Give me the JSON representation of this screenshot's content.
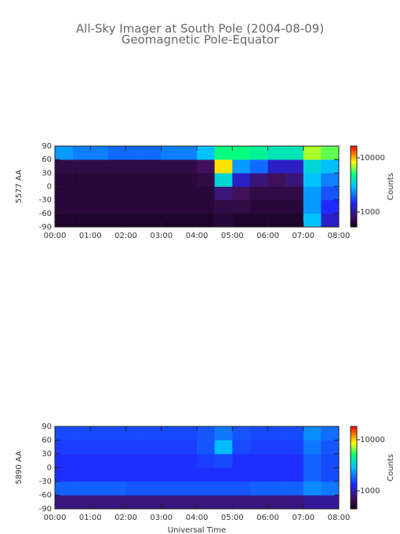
{
  "chart_data": [
    {
      "type": "heatmap",
      "title": "All-Sky Imager at South Pole (2004-08-09)",
      "subtitle": "Geomagnetic Pole-Equator",
      "y_label": "5577 AA",
      "colorbar_label": "Counts",
      "x_bins": [
        0,
        0.5,
        1,
        1.5,
        2,
        2.5,
        3,
        3.5,
        4,
        4.5,
        5,
        5.5,
        6,
        6.5,
        7,
        7.5,
        8
      ],
      "y_bins": [
        -90,
        -60,
        -30,
        0,
        30,
        60,
        90
      ],
      "z": [
        [
          600,
          600,
          600,
          600,
          600,
          600,
          600,
          600,
          600,
          650,
          600,
          600,
          600,
          600,
          3000,
          1200
        ],
        [
          650,
          650,
          650,
          650,
          650,
          650,
          650,
          650,
          650,
          700,
          700,
          650,
          650,
          650,
          2500,
          1500
        ],
        [
          650,
          650,
          650,
          650,
          650,
          650,
          650,
          650,
          650,
          900,
          800,
          700,
          700,
          700,
          2500,
          1800
        ],
        [
          650,
          650,
          650,
          650,
          650,
          650,
          650,
          650,
          700,
          3500,
          1200,
          900,
          800,
          900,
          3000,
          2200
        ],
        [
          700,
          700,
          700,
          700,
          700,
          700,
          700,
          700,
          800,
          9000,
          2500,
          2000,
          1200,
          1200,
          3500,
          3000
        ],
        [
          2500,
          2200,
          2200,
          2000,
          2000,
          2000,
          2200,
          2200,
          3000,
          5000,
          5000,
          4500,
          4000,
          4000,
          7000,
          6000
        ]
      ],
      "xlim": [
        0,
        8
      ],
      "xticks": [
        {
          "value": 0,
          "label": "00:00"
        },
        {
          "value": 1,
          "label": "01:00"
        },
        {
          "value": 2,
          "label": "02:00"
        },
        {
          "value": 3,
          "label": "03:00"
        },
        {
          "value": 4,
          "label": "04:00"
        },
        {
          "value": 5,
          "label": "05:00"
        },
        {
          "value": 6,
          "label": "06:00"
        },
        {
          "value": 7,
          "label": "07:00"
        },
        {
          "value": 8,
          "label": "08:00"
        }
      ],
      "ylim": [
        -90,
        90
      ],
      "yticks": [
        -90,
        -60,
        -30,
        0,
        30,
        60,
        90
      ],
      "clim": [
        530,
        16500
      ],
      "cticks": [
        1000,
        10000
      ],
      "log_color": true
    },
    {
      "type": "heatmap",
      "y_label": "5890 AA",
      "colorbar_label": "Counts",
      "x_label": "Universal Time",
      "x_bins": [
        0,
        0.5,
        1,
        1.5,
        2,
        2.5,
        3,
        3.5,
        4,
        4.5,
        5,
        5.5,
        6,
        6.5,
        7,
        7.5,
        8
      ],
      "y_bins": [
        -90,
        -60,
        -30,
        0,
        30,
        60,
        90
      ],
      "z": [
        [
          800,
          800,
          800,
          800,
          800,
          800,
          800,
          800,
          800,
          800,
          800,
          800,
          800,
          800,
          900,
          900
        ],
        [
          1800,
          1800,
          1800,
          1800,
          1700,
          1700,
          1700,
          1700,
          1700,
          1700,
          1700,
          1800,
          1800,
          1800,
          2200,
          2000
        ],
        [
          1400,
          1400,
          1400,
          1400,
          1400,
          1400,
          1400,
          1400,
          1400,
          1400,
          1400,
          1400,
          1400,
          1400,
          1800,
          1600
        ],
        [
          1400,
          1400,
          1400,
          1400,
          1400,
          1400,
          1400,
          1400,
          1500,
          1600,
          1400,
          1400,
          1400,
          1400,
          1800,
          1600
        ],
        [
          1500,
          1500,
          1500,
          1500,
          1500,
          1500,
          1500,
          1500,
          1700,
          2800,
          1600,
          1500,
          1500,
          1500,
          2000,
          1700
        ],
        [
          1600,
          1600,
          1600,
          1600,
          1600,
          1600,
          1600,
          1600,
          1700,
          2000,
          1700,
          1600,
          1600,
          1600,
          2200,
          1900
        ]
      ],
      "xlim": [
        0,
        8
      ],
      "xticks": [
        {
          "value": 0,
          "label": "00:00"
        },
        {
          "value": 1,
          "label": "01:00"
        },
        {
          "value": 2,
          "label": "02:00"
        },
        {
          "value": 3,
          "label": "03:00"
        },
        {
          "value": 4,
          "label": "04:00"
        },
        {
          "value": 5,
          "label": "05:00"
        },
        {
          "value": 6,
          "label": "06:00"
        },
        {
          "value": 7,
          "label": "07:00"
        },
        {
          "value": 8,
          "label": "08:00"
        }
      ],
      "ylim": [
        -90,
        90
      ],
      "yticks": [
        -90,
        -60,
        -30,
        0,
        30,
        60,
        90
      ],
      "clim": [
        445,
        18200
      ],
      "cticks": [
        1000,
        10000
      ],
      "log_color": true
    }
  ]
}
